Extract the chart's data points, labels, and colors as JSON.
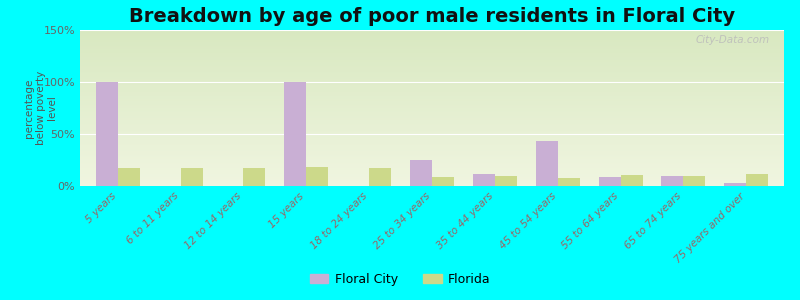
{
  "title": "Breakdown by age of poor male residents in Floral City",
  "ylabel": "percentage\nbelow poverty\nlevel",
  "categories": [
    "5 years",
    "6 to 11 years",
    "12 to 14 years",
    "15 years",
    "18 to 24 years",
    "25 to 34 years",
    "35 to 44 years",
    "45 to 54 years",
    "55 to 64 years",
    "65 to 74 years",
    "75 years and over"
  ],
  "floral_city": [
    100,
    0,
    0,
    100,
    0,
    25,
    12,
    43,
    9,
    10,
    3
  ],
  "florida": [
    17,
    17,
    17,
    18,
    17,
    9,
    10,
    8,
    11,
    10,
    12
  ],
  "floral_color": "#c9afd4",
  "florida_color": "#ccd98a",
  "background_color": "#00ffff",
  "ylim": [
    0,
    150
  ],
  "yticks": [
    0,
    50,
    100,
    150
  ],
  "ytick_labels": [
    "0%",
    "50%",
    "100%",
    "150%"
  ],
  "title_fontsize": 14,
  "bar_width": 0.35,
  "legend_labels": [
    "Floral City",
    "Florida"
  ],
  "watermark": "City-Data.com"
}
